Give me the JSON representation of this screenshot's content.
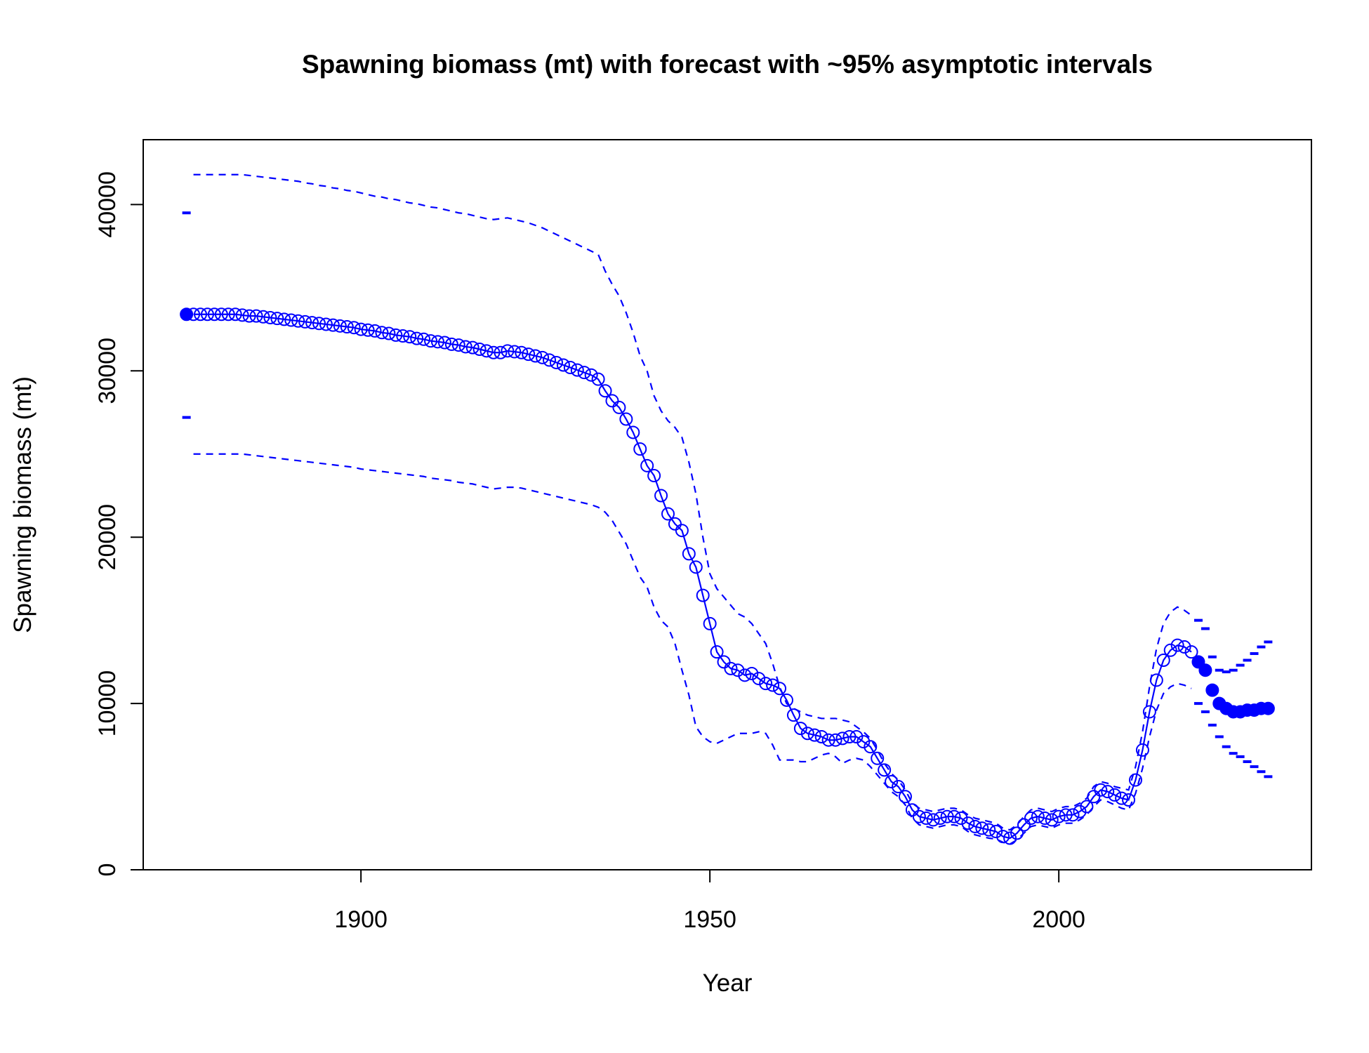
{
  "chart_data": {
    "type": "line",
    "title": "Spawning biomass (mt) with forecast with ~95% asymptotic intervals",
    "x_label": "Year",
    "y_label": "Spawning biomass (mt)",
    "xlim": [
      1868.8,
      2036.2
    ],
    "ylim": [
      0,
      43900
    ],
    "xticks": [
      1900,
      1950,
      2000
    ],
    "yticks": [
      0,
      10000,
      20000,
      30000,
      40000
    ],
    "color": "#0000ff",
    "virgin": {
      "x": 1875,
      "value": 33400,
      "lower": 27200,
      "upper": 39500
    },
    "estimate": {
      "x": [
        1876,
        1877,
        1878,
        1879,
        1880,
        1881,
        1882,
        1883,
        1884,
        1885,
        1886,
        1887,
        1888,
        1889,
        1890,
        1891,
        1892,
        1893,
        1894,
        1895,
        1896,
        1897,
        1898,
        1899,
        1900,
        1901,
        1902,
        1903,
        1904,
        1905,
        1906,
        1907,
        1908,
        1909,
        1910,
        1911,
        1912,
        1913,
        1914,
        1915,
        1916,
        1917,
        1918,
        1919,
        1920,
        1921,
        1922,
        1923,
        1924,
        1925,
        1926,
        1927,
        1928,
        1929,
        1930,
        1931,
        1932,
        1933,
        1934,
        1935,
        1936,
        1937,
        1938,
        1939,
        1940,
        1941,
        1942,
        1943,
        1944,
        1945,
        1946,
        1947,
        1948,
        1949,
        1950,
        1951,
        1952,
        1953,
        1954,
        1955,
        1956,
        1957,
        1958,
        1959,
        1960,
        1961,
        1962,
        1963,
        1964,
        1965,
        1966,
        1967,
        1968,
        1969,
        1970,
        1971,
        1972,
        1973,
        1974,
        1975,
        1976,
        1977,
        1978,
        1979,
        1980,
        1981,
        1982,
        1983,
        1984,
        1985,
        1986,
        1987,
        1988,
        1989,
        1990,
        1991,
        1992,
        1993,
        1994,
        1995,
        1996,
        1997,
        1998,
        1999,
        2000,
        2001,
        2002,
        2003,
        2004,
        2005,
        2006,
        2007,
        2008,
        2009,
        2010,
        2011,
        2012,
        2013,
        2014,
        2015,
        2016,
        2017,
        2018,
        2019
      ],
      "values": [
        33400,
        33400,
        33400,
        33400,
        33400,
        33400,
        33400,
        33350,
        33300,
        33300,
        33250,
        33200,
        33150,
        33100,
        33050,
        33000,
        32950,
        32900,
        32850,
        32800,
        32750,
        32700,
        32650,
        32600,
        32500,
        32450,
        32400,
        32300,
        32250,
        32150,
        32100,
        32050,
        31950,
        31900,
        31800,
        31750,
        31700,
        31600,
        31550,
        31450,
        31400,
        31300,
        31200,
        31100,
        31100,
        31200,
        31150,
        31100,
        31000,
        30900,
        30800,
        30650,
        30500,
        30350,
        30200,
        30050,
        29900,
        29750,
        29500,
        28800,
        28200,
        27800,
        27100,
        26300,
        25300,
        24300,
        23700,
        22500,
        21400,
        20800,
        20400,
        19000,
        18200,
        16500,
        14800,
        13100,
        12500,
        12100,
        12000,
        11700,
        11800,
        11500,
        11200,
        11100,
        10900,
        10200,
        9300,
        8500,
        8200,
        8100,
        8000,
        7800,
        7800,
        7900,
        8000,
        8000,
        7700,
        7400,
        6700,
        6000,
        5300,
        5000,
        4400,
        3600,
        3200,
        3100,
        3000,
        3100,
        3200,
        3200,
        3100,
        2800,
        2600,
        2500,
        2400,
        2300,
        2000,
        1900,
        2200,
        2700,
        3100,
        3200,
        3100,
        3000,
        3200,
        3300,
        3300,
        3500,
        3800,
        4400,
        4800,
        4700,
        4500,
        4300,
        4200,
        5400,
        7200,
        9500,
        11400,
        12600,
        13200,
        13500,
        13400,
        13100
      ],
      "upper": [
        41800,
        41800,
        41800,
        41800,
        41800,
        41800,
        41800,
        41800,
        41750,
        41700,
        41650,
        41600,
        41550,
        41500,
        41450,
        41400,
        41300,
        41250,
        41150,
        41100,
        41000,
        40950,
        40850,
        40800,
        40700,
        40600,
        40500,
        40450,
        40350,
        40300,
        40200,
        40100,
        40050,
        39950,
        39850,
        39800,
        39700,
        39600,
        39500,
        39450,
        39350,
        39250,
        39150,
        39100,
        39150,
        39200,
        39100,
        39000,
        38900,
        38750,
        38600,
        38400,
        38200,
        38000,
        37800,
        37600,
        37400,
        37200,
        37000,
        36000,
        35200,
        34500,
        33500,
        32300,
        30900,
        30000,
        28500,
        27600,
        27000,
        26600,
        26000,
        24500,
        22600,
        20000,
        17800,
        16900,
        16400,
        15900,
        15400,
        15200,
        14800,
        14200,
        13600,
        12400,
        11000,
        10000,
        9700,
        9500,
        9300,
        9200,
        9100,
        9100,
        9100,
        9000,
        8900,
        8600,
        8300,
        7900,
        7200,
        6400,
        5800,
        5400,
        4800,
        4000,
        3700,
        3600,
        3500,
        3600,
        3700,
        3700,
        3600,
        3300,
        3100,
        3000,
        2900,
        2800,
        2500,
        2400,
        2700,
        3200,
        3600,
        3700,
        3600,
        3500,
        3700,
        3800,
        3800,
        4000,
        4300,
        5000,
        5300,
        5200,
        5000,
        4900,
        4800,
        6200,
        8300,
        11000,
        13300,
        14800,
        15500,
        15800,
        15600,
        15300
      ],
      "lower": [
        25000,
        25000,
        25000,
        25000,
        25000,
        25000,
        25000,
        25000,
        24950,
        24900,
        24850,
        24800,
        24750,
        24700,
        24650,
        24600,
        24550,
        24500,
        24450,
        24400,
        24350,
        24300,
        24250,
        24200,
        24100,
        24050,
        24000,
        23950,
        23900,
        23850,
        23800,
        23750,
        23700,
        23650,
        23550,
        23500,
        23450,
        23400,
        23300,
        23250,
        23200,
        23100,
        23000,
        22900,
        22950,
        23000,
        23000,
        22950,
        22850,
        22750,
        22650,
        22550,
        22450,
        22350,
        22250,
        22150,
        22050,
        21950,
        21800,
        21500,
        21000,
        20300,
        19600,
        18600,
        17600,
        17000,
        15800,
        15000,
        14600,
        13600,
        12000,
        10500,
        8600,
        8000,
        7700,
        7600,
        7800,
        8000,
        8200,
        8200,
        8200,
        8300,
        8200,
        7500,
        6600,
        6600,
        6600,
        6500,
        6500,
        6700,
        6900,
        7000,
        6800,
        6400,
        6600,
        6700,
        6600,
        6200,
        5700,
        5200,
        4700,
        4400,
        3900,
        3100,
        2700,
        2600,
        2500,
        2600,
        2700,
        2700,
        2600,
        2300,
        2100,
        2000,
        1900,
        1850,
        1650,
        1550,
        1800,
        2200,
        2600,
        2700,
        2600,
        2500,
        2700,
        2800,
        2800,
        3000,
        3300,
        3800,
        4200,
        4100,
        3900,
        3700,
        3600,
        4600,
        6100,
        8000,
        9600,
        10600,
        11000,
        11200,
        11100,
        10900
      ]
    },
    "forecast": {
      "x": [
        2020,
        2021,
        2022,
        2023,
        2024,
        2025,
        2026,
        2027,
        2028,
        2029,
        2030
      ],
      "values": [
        12500,
        12000,
        10800,
        10000,
        9700,
        9500,
        9500,
        9600,
        9600,
        9700,
        9700
      ],
      "upper": [
        15000,
        14500,
        12800,
        12000,
        11900,
        12000,
        12300,
        12600,
        13000,
        13400,
        13700
      ],
      "lower": [
        10000,
        9500,
        8700,
        8000,
        7400,
        7000,
        6800,
        6500,
        6200,
        5900,
        5600
      ]
    }
  }
}
